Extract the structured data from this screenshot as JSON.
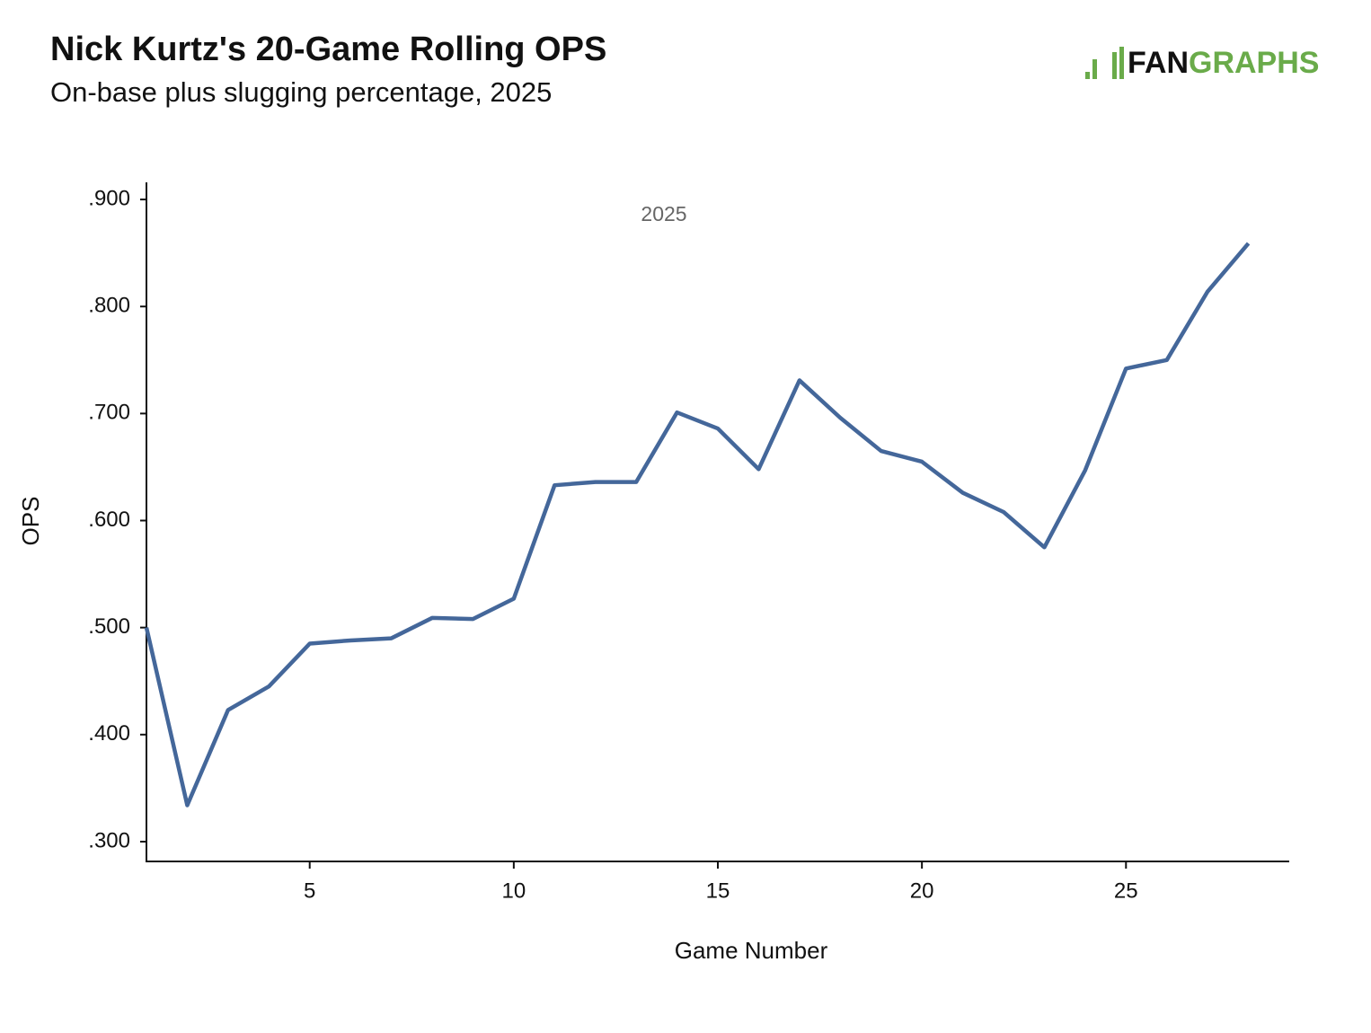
{
  "chart_data": {
    "type": "line",
    "title": "Nick Kurtz's 20-Game Rolling OPS",
    "subtitle": "On-base plus slugging percentage, 2025",
    "logo": {
      "left": "FAN",
      "right": "GRAPHS"
    },
    "x_label": "Game Number",
    "y_label": "OPS",
    "x": [
      1,
      2,
      3,
      4,
      5,
      6,
      7,
      8,
      9,
      10,
      11,
      12,
      13,
      14,
      15,
      16,
      17,
      18,
      19,
      20,
      21,
      22,
      23,
      24,
      25,
      26,
      27,
      28
    ],
    "series": [
      {
        "name": "2025",
        "color": "#44679a",
        "values": [
          0.5,
          0.334,
          0.423,
          0.445,
          0.485,
          0.488,
          0.49,
          0.509,
          0.508,
          0.527,
          0.633,
          0.636,
          0.636,
          0.701,
          0.686,
          0.648,
          0.731,
          0.696,
          0.665,
          0.655,
          0.626,
          0.608,
          0.575,
          0.647,
          0.742,
          0.75,
          0.814,
          0.859
        ]
      }
    ],
    "xlim": [
      1,
      29
    ],
    "xticks": [
      5,
      10,
      15,
      20,
      25
    ],
    "ylim": [
      0.2815,
      0.916
    ],
    "yticks": [
      {
        "value": 0.3,
        "label": ".300"
      },
      {
        "value": 0.4,
        "label": ".400"
      },
      {
        "value": 0.5,
        "label": ".500"
      },
      {
        "value": 0.6,
        "label": ".600"
      },
      {
        "value": 0.7,
        "label": ".700"
      },
      {
        "value": 0.8,
        "label": ".800"
      },
      {
        "value": 0.9,
        "label": ".900"
      }
    ],
    "grid": false
  }
}
